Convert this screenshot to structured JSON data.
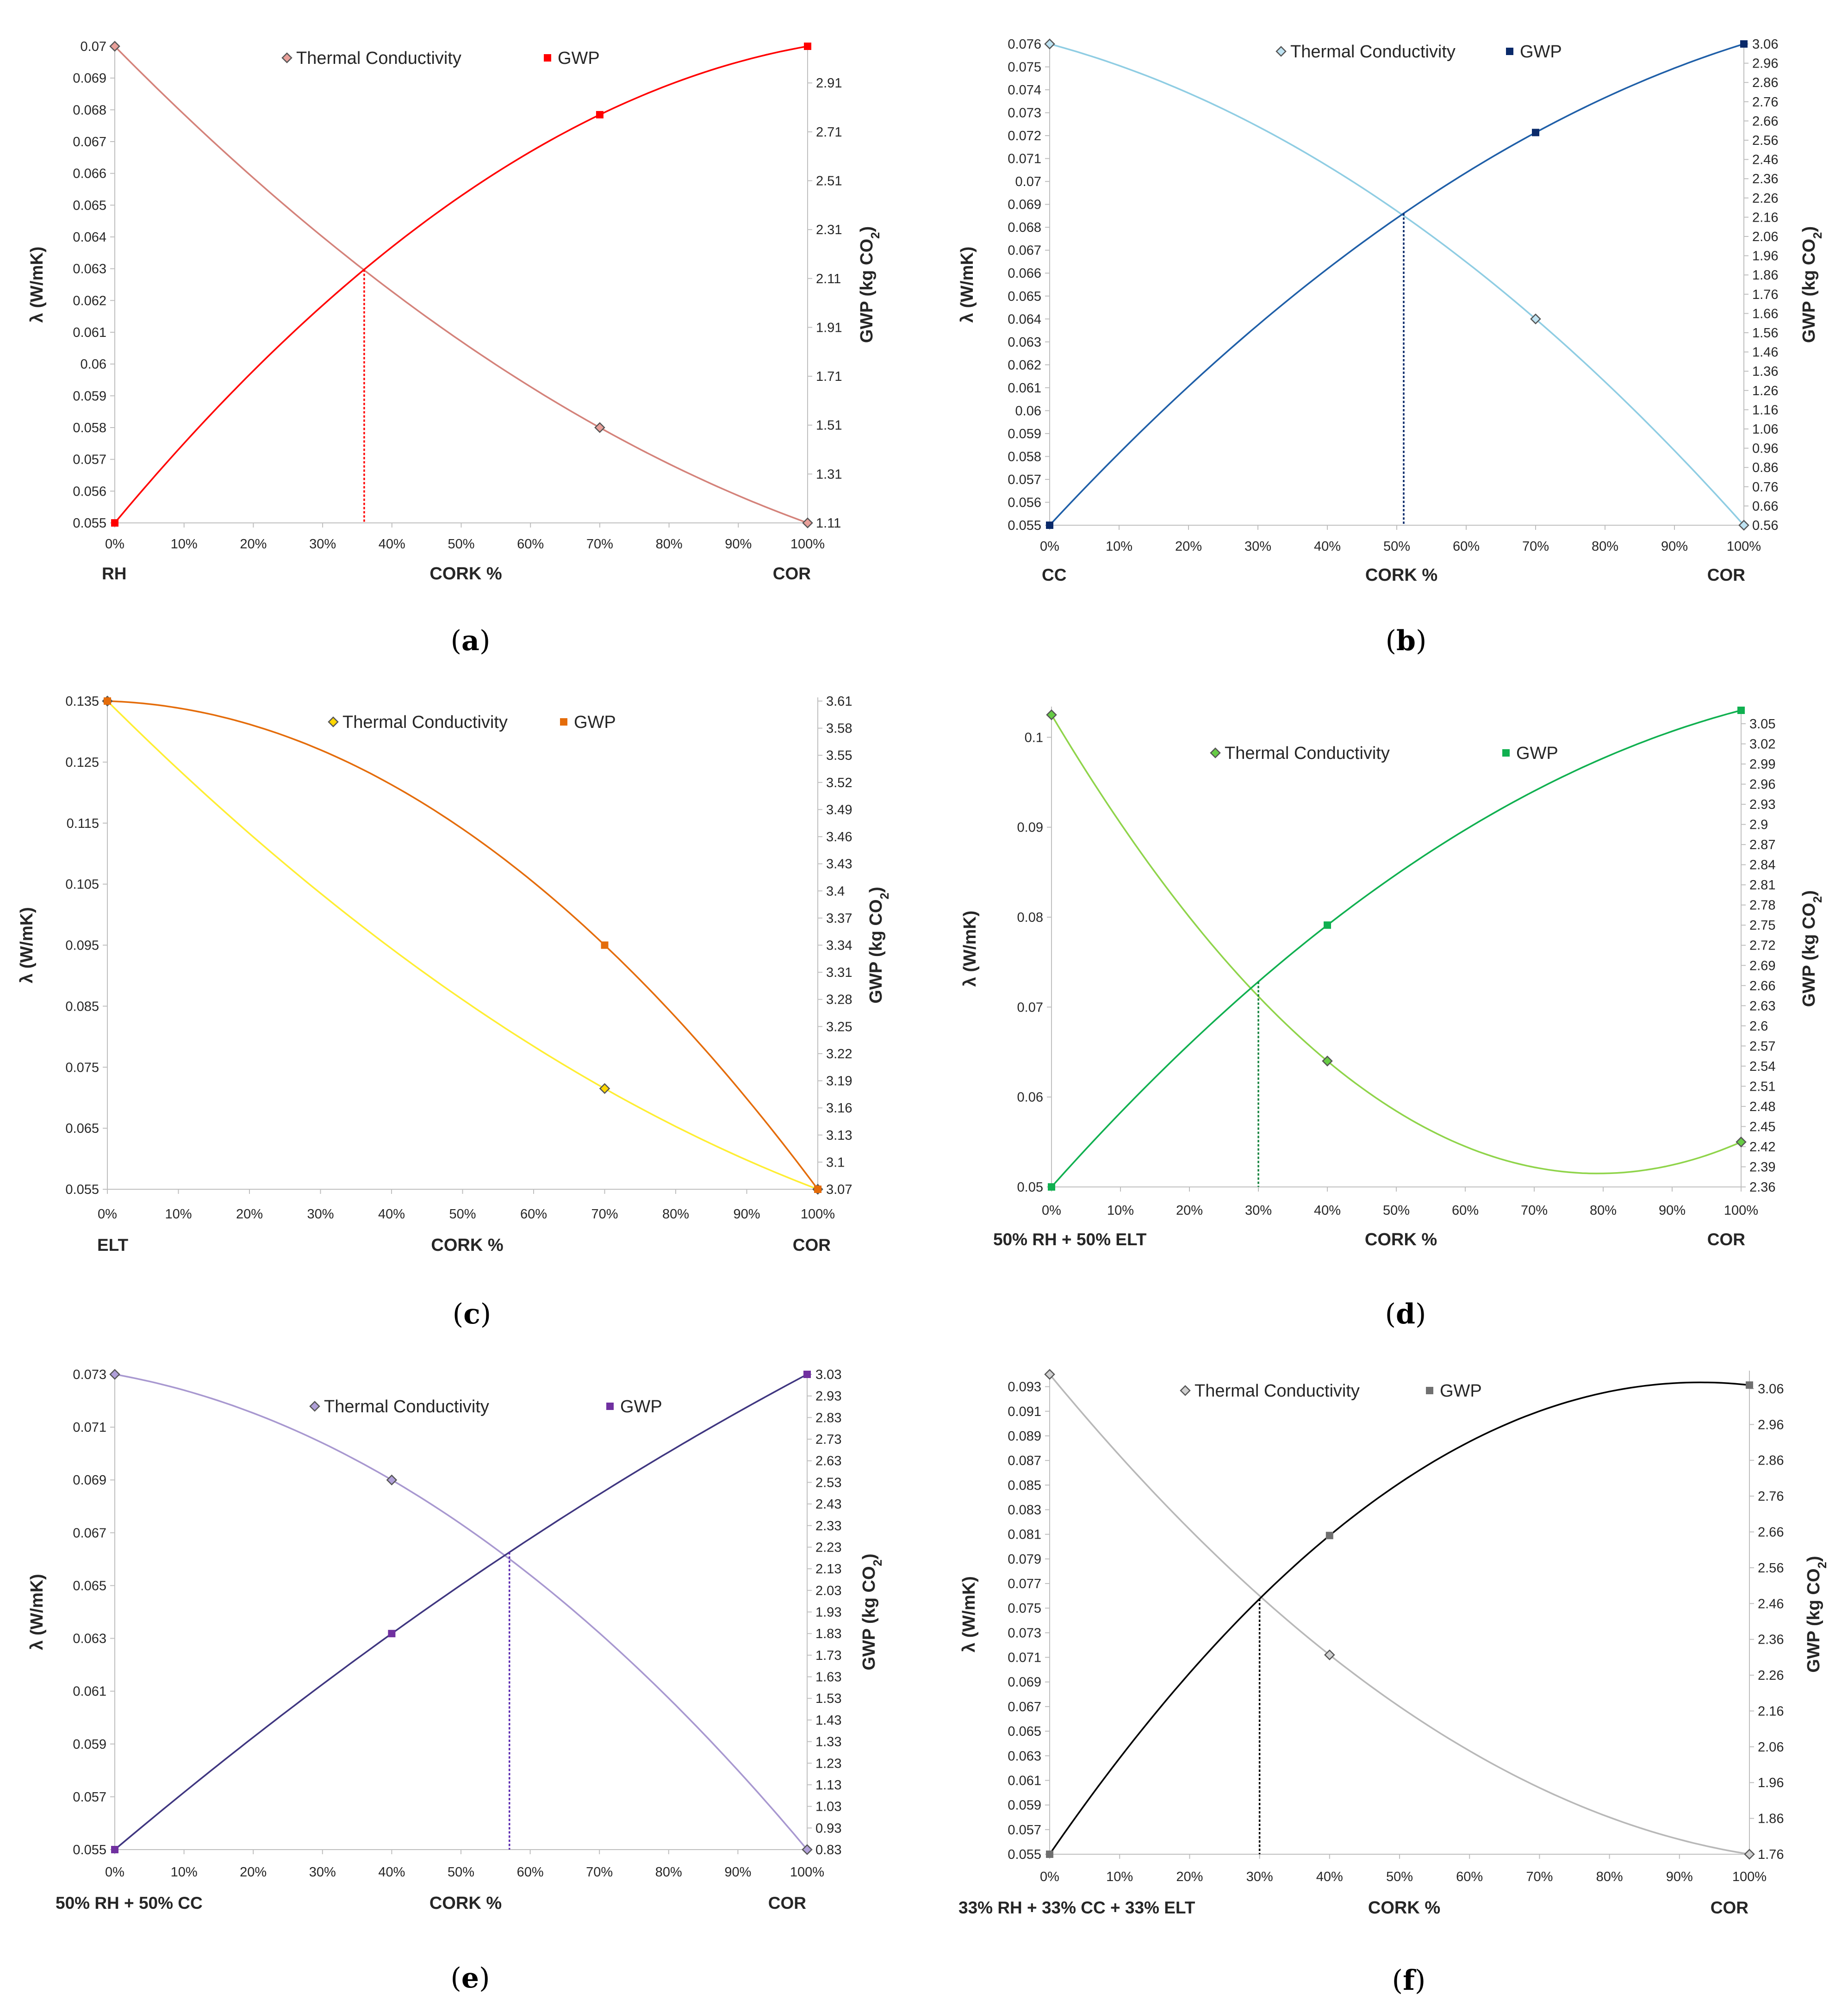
{
  "figure": {
    "x_axis_title": "CORK %",
    "left_axis_title": "λ (W/mK)",
    "right_axis_title_main": "GWP (kg CO",
    "right_axis_title_sub": "2",
    "right_axis_title_close": ")",
    "legend_thermal": "Thermal Conductivity",
    "legend_gwp": "GWP",
    "x_ticks": [
      "0%",
      "10%",
      "20%",
      "30%",
      "40%",
      "50%",
      "60%",
      "70%",
      "80%",
      "90%",
      "100%"
    ]
  },
  "chart_data": [
    {
      "panel": "a",
      "type": "line",
      "caption_open": "(",
      "caption_letter": "a",
      "caption_close": ")",
      "left_corner_label": "RH",
      "right_corner_label": "COR",
      "ylim_left": [
        0.055,
        0.07
      ],
      "left_ticks": [
        "0.055",
        "0.056",
        "0.057",
        "0.058",
        "0.059",
        "0.06",
        "0.061",
        "0.062",
        "0.063",
        "0.064",
        "0.065",
        "0.066",
        "0.067",
        "0.068",
        "0.069",
        "0.07"
      ],
      "ylim_right": [
        1.11,
        3.06
      ],
      "right_ticks": [
        "1.11",
        "1.31",
        "1.51",
        "1.71",
        "1.91",
        "2.11",
        "2.31",
        "2.51",
        "2.71",
        "2.91"
      ],
      "thermal_color": "#d4827a",
      "thermal_fill": "#e8a09a",
      "gwp_color": "#ff0000",
      "gwp_fill": "#ff0000",
      "thermal": {
        "x": [
          0,
          70,
          100
        ],
        "y": [
          0.07,
          0.058,
          0.055
        ]
      },
      "gwp": {
        "x": [
          0,
          70,
          100
        ],
        "y": [
          1.11,
          2.78,
          3.06
        ]
      },
      "intersection_x": 36,
      "intersection_color": "#ff0000"
    },
    {
      "panel": "b",
      "type": "line",
      "caption_open": "(",
      "caption_letter": "b",
      "caption_close": ")",
      "left_corner_label": "CC",
      "right_corner_label": "COR",
      "ylim_left": [
        0.055,
        0.076
      ],
      "left_ticks": [
        "0.055",
        "0.056",
        "0.057",
        "0.058",
        "0.059",
        "0.06",
        "0.061",
        "0.062",
        "0.063",
        "0.064",
        "0.065",
        "0.066",
        "0.067",
        "0.068",
        "0.069",
        "0.07",
        "0.071",
        "0.072",
        "0.073",
        "0.074",
        "0.075",
        "0.076"
      ],
      "ylim_right": [
        0.56,
        3.06
      ],
      "right_ticks": [
        "0.56",
        "0.66",
        "0.76",
        "0.86",
        "0.96",
        "1.06",
        "1.16",
        "1.26",
        "1.36",
        "1.46",
        "1.56",
        "1.66",
        "1.76",
        "1.86",
        "1.96",
        "2.06",
        "2.16",
        "2.26",
        "2.36",
        "2.46",
        "2.56",
        "2.66",
        "2.76",
        "2.86",
        "2.96",
        "3.06"
      ],
      "thermal_color": "#8fcde3",
      "thermal_fill": "#bfe3f2",
      "gwp_color": "#1f5fa8",
      "gwp_fill": "#0a2a6a",
      "thermal": {
        "x": [
          0,
          70,
          100
        ],
        "y": [
          0.076,
          0.064,
          0.055
        ]
      },
      "gwp": {
        "x": [
          0,
          70,
          100
        ],
        "y": [
          0.56,
          2.6,
          3.06
        ]
      },
      "intersection_x": 51,
      "intersection_color": "#0a2a6a"
    },
    {
      "panel": "c",
      "type": "line",
      "caption_open": "(",
      "caption_letter": "c",
      "caption_close": ")",
      "left_corner_label": "ELT",
      "right_corner_label": "COR",
      "ylim_left": [
        0.055,
        0.135
      ],
      "left_ticks": [
        "0.055",
        "0.065",
        "0.075",
        "0.085",
        "0.095",
        "0.105",
        "0.115",
        "0.125",
        "0.135"
      ],
      "ylim_right": [
        3.07,
        3.61
      ],
      "right_ticks": [
        "3.07",
        "3.1",
        "3.13",
        "3.16",
        "3.19",
        "3.22",
        "3.25",
        "3.28",
        "3.31",
        "3.34",
        "3.37",
        "3.4",
        "3.43",
        "3.46",
        "3.49",
        "3.52",
        "3.55",
        "3.58",
        "3.61"
      ],
      "thermal_color": "#ffee33",
      "thermal_fill": "#ffd700",
      "gwp_color": "#e46c0a",
      "gwp_fill": "#e46c0a",
      "thermal": {
        "x": [
          0,
          70,
          100
        ],
        "y": [
          0.135,
          0.0715,
          0.055
        ]
      },
      "gwp": {
        "x": [
          0,
          70,
          100
        ],
        "y": [
          3.61,
          3.34,
          3.07
        ]
      },
      "intersection_x": null,
      "intersection_color": ""
    },
    {
      "panel": "d",
      "type": "line",
      "caption_open": "(",
      "caption_letter": "d",
      "caption_close": ")",
      "left_corner_label": "50% RH + 50% ELT",
      "right_corner_label": "COR",
      "ylim_left": [
        0.05,
        0.103
      ],
      "left_ticks": [
        "0.05",
        "0.06",
        "0.07",
        "0.08",
        "0.09",
        "0.1"
      ],
      "left_tick_values": [
        0.05,
        0.06,
        0.07,
        0.08,
        0.09,
        0.1
      ],
      "ylim_right": [
        2.36,
        3.07
      ],
      "right_ticks": [
        "2.36",
        "2.39",
        "2.42",
        "2.45",
        "2.48",
        "2.51",
        "2.54",
        "2.57",
        "2.6",
        "2.63",
        "2.66",
        "2.69",
        "2.72",
        "2.75",
        "2.78",
        "2.81",
        "2.84",
        "2.87",
        "2.9",
        "2.93",
        "2.96",
        "2.99",
        "3.02",
        "3.05"
      ],
      "thermal_color": "#8fd44a",
      "thermal_fill": "#66cc44",
      "gwp_color": "#10b050",
      "gwp_fill": "#10b050",
      "thermal": {
        "x": [
          0,
          40,
          100
        ],
        "y": [
          0.1025,
          0.064,
          0.055
        ]
      },
      "gwp": {
        "x": [
          0,
          40,
          100
        ],
        "y": [
          2.36,
          2.75,
          3.07
        ]
      },
      "intersection_x": 30,
      "intersection_color": "#10803a"
    },
    {
      "panel": "e",
      "type": "line",
      "caption_open": "(",
      "caption_letter": "e",
      "caption_close": ")",
      "left_corner_label": "50% RH + 50% CC",
      "right_corner_label": "COR",
      "ylim_left": [
        0.055,
        0.073
      ],
      "left_ticks": [
        "0.055",
        "0.057",
        "0.059",
        "0.061",
        "0.063",
        "0.065",
        "0.067",
        "0.069",
        "0.071",
        "0.073"
      ],
      "left_tick_values": [
        0.055,
        0.057,
        0.059,
        0.061,
        0.063,
        0.065,
        0.067,
        0.069,
        0.071,
        0.073
      ],
      "ylim_right": [
        0.83,
        3.03
      ],
      "right_ticks": [
        "0.83",
        "0.93",
        "1.03",
        "1.13",
        "1.23",
        "1.33",
        "1.43",
        "1.53",
        "1.63",
        "1.73",
        "1.83",
        "1.93",
        "2.03",
        "2.13",
        "2.23",
        "2.33",
        "2.43",
        "2.53",
        "2.63",
        "2.73",
        "2.83",
        "2.93",
        "3.03"
      ],
      "thermal_color": "#a898d0",
      "thermal_fill": "#b0a0d8",
      "gwp_color": "#3f3680",
      "gwp_fill": "#7030a0",
      "thermal": {
        "x": [
          0,
          40,
          100
        ],
        "y": [
          0.073,
          0.069,
          0.055
        ]
      },
      "gwp": {
        "x": [
          0,
          40,
          100
        ],
        "y": [
          0.83,
          1.83,
          3.03
        ]
      },
      "intersection_x": 57,
      "intersection_color": "#5b2ab0"
    },
    {
      "panel": "f",
      "type": "line",
      "caption_open": "(",
      "caption_letter": "f",
      "caption_close": ")",
      "left_corner_label": "33% RH + 33% CC + 33% ELT",
      "right_corner_label": "COR",
      "ylim_left": [
        0.055,
        0.094
      ],
      "left_ticks": [
        "0.055",
        "0.057",
        "0.059",
        "0.061",
        "0.063",
        "0.065",
        "0.067",
        "0.069",
        "0.071",
        "0.073",
        "0.075",
        "0.077",
        "0.079",
        "0.081",
        "0.083",
        "0.085",
        "0.087",
        "0.089",
        "0.091",
        "0.093"
      ],
      "left_tick_values": [
        0.055,
        0.057,
        0.059,
        0.061,
        0.063,
        0.065,
        0.067,
        0.069,
        0.071,
        0.073,
        0.075,
        0.077,
        0.079,
        0.081,
        0.083,
        0.085,
        0.087,
        0.089,
        0.091,
        0.093
      ],
      "ylim_right": [
        1.76,
        3.1
      ],
      "right_ticks": [
        "1.76",
        "1.86",
        "1.96",
        "2.06",
        "2.16",
        "2.26",
        "2.36",
        "2.46",
        "2.56",
        "2.66",
        "2.76",
        "2.86",
        "2.96",
        "3.06"
      ],
      "right_tick_values": [
        1.76,
        1.86,
        1.96,
        2.06,
        2.16,
        2.26,
        2.36,
        2.46,
        2.56,
        2.66,
        2.76,
        2.86,
        2.96,
        3.06
      ],
      "thermal_color": "#b8b8b8",
      "thermal_fill": "#d0d0d0",
      "gwp_color": "#000000",
      "gwp_fill": "#707070",
      "thermal": {
        "x": [
          0,
          40,
          100
        ],
        "y": [
          0.094,
          0.0712,
          0.055
        ]
      },
      "gwp": {
        "x": [
          0,
          40,
          100
        ],
        "y": [
          1.76,
          2.65,
          3.07
        ]
      },
      "intersection_x": 30,
      "intersection_color": "#000000"
    }
  ]
}
